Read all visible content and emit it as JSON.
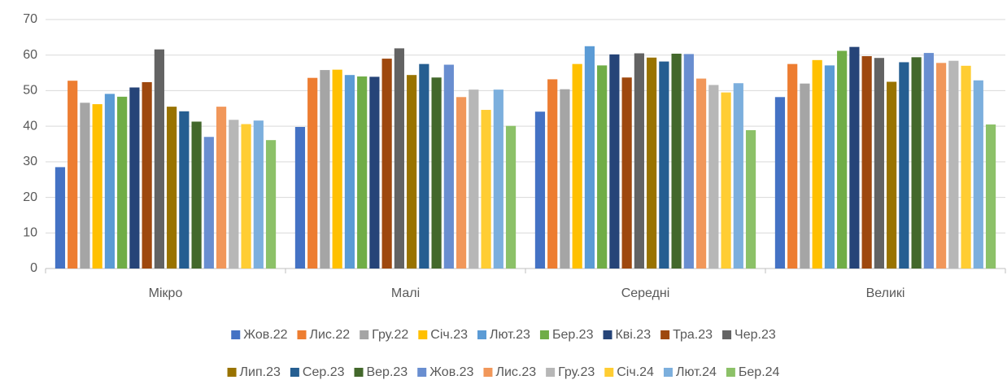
{
  "chart_data": {
    "type": "bar",
    "categories": [
      "Мікро",
      "Малі",
      "Середні",
      "Великі"
    ],
    "ylim": [
      0,
      70
    ],
    "yticks": [
      0,
      10,
      20,
      30,
      40,
      50,
      60,
      70
    ],
    "grid": true,
    "legend": "bottom",
    "series": [
      {
        "name": "Жов.22",
        "color": "#4472C4",
        "values": [
          28.5,
          39.8,
          44.1,
          48.2
        ]
      },
      {
        "name": "Лис.22",
        "color": "#ED7D31",
        "values": [
          52.8,
          53.6,
          53.2,
          57.5
        ]
      },
      {
        "name": "Гру.22",
        "color": "#A5A5A5",
        "values": [
          46.6,
          55.8,
          50.4,
          52.0
        ]
      },
      {
        "name": "Січ.23",
        "color": "#FFC000",
        "values": [
          46.2,
          55.9,
          57.5,
          58.6
        ]
      },
      {
        "name": "Лют.23",
        "color": "#5B9BD5",
        "values": [
          49.1,
          54.4,
          62.5,
          57.1
        ]
      },
      {
        "name": "Бер.23",
        "color": "#70AD47",
        "values": [
          48.3,
          54.0,
          57.1,
          61.2
        ]
      },
      {
        "name": "Кві.23",
        "color": "#264478",
        "values": [
          50.9,
          53.9,
          60.2,
          62.3
        ]
      },
      {
        "name": "Тра.23",
        "color": "#9E480E",
        "values": [
          52.4,
          59.0,
          53.7,
          59.7
        ]
      },
      {
        "name": "Чер.23",
        "color": "#636363",
        "values": [
          61.6,
          61.9,
          60.5,
          59.2
        ]
      },
      {
        "name": "Лип.23",
        "color": "#997300",
        "values": [
          45.5,
          54.4,
          59.3,
          52.5
        ]
      },
      {
        "name": "Сер.23",
        "color": "#255E91",
        "values": [
          44.2,
          57.5,
          58.2,
          58.0
        ]
      },
      {
        "name": "Вер.23",
        "color": "#43682B",
        "values": [
          41.3,
          53.7,
          60.4,
          59.4
        ]
      },
      {
        "name": "Жов.23",
        "color": "#698ED0",
        "values": [
          37.0,
          57.3,
          60.3,
          60.6
        ]
      },
      {
        "name": "Лис.23",
        "color": "#F1975A",
        "values": [
          45.5,
          48.2,
          53.4,
          57.8
        ]
      },
      {
        "name": "Гру.23",
        "color": "#B7B7B7",
        "values": [
          41.8,
          50.3,
          51.6,
          58.4
        ]
      },
      {
        "name": "Січ.24",
        "color": "#FFCD33",
        "values": [
          40.6,
          44.6,
          49.5,
          57.0
        ]
      },
      {
        "name": "Лют.24",
        "color": "#7CAFDD",
        "values": [
          41.6,
          50.3,
          52.1,
          52.9
        ]
      },
      {
        "name": "Бер.24",
        "color": "#8CC168",
        "values": [
          36.1,
          40.1,
          38.9,
          40.5
        ]
      }
    ]
  }
}
